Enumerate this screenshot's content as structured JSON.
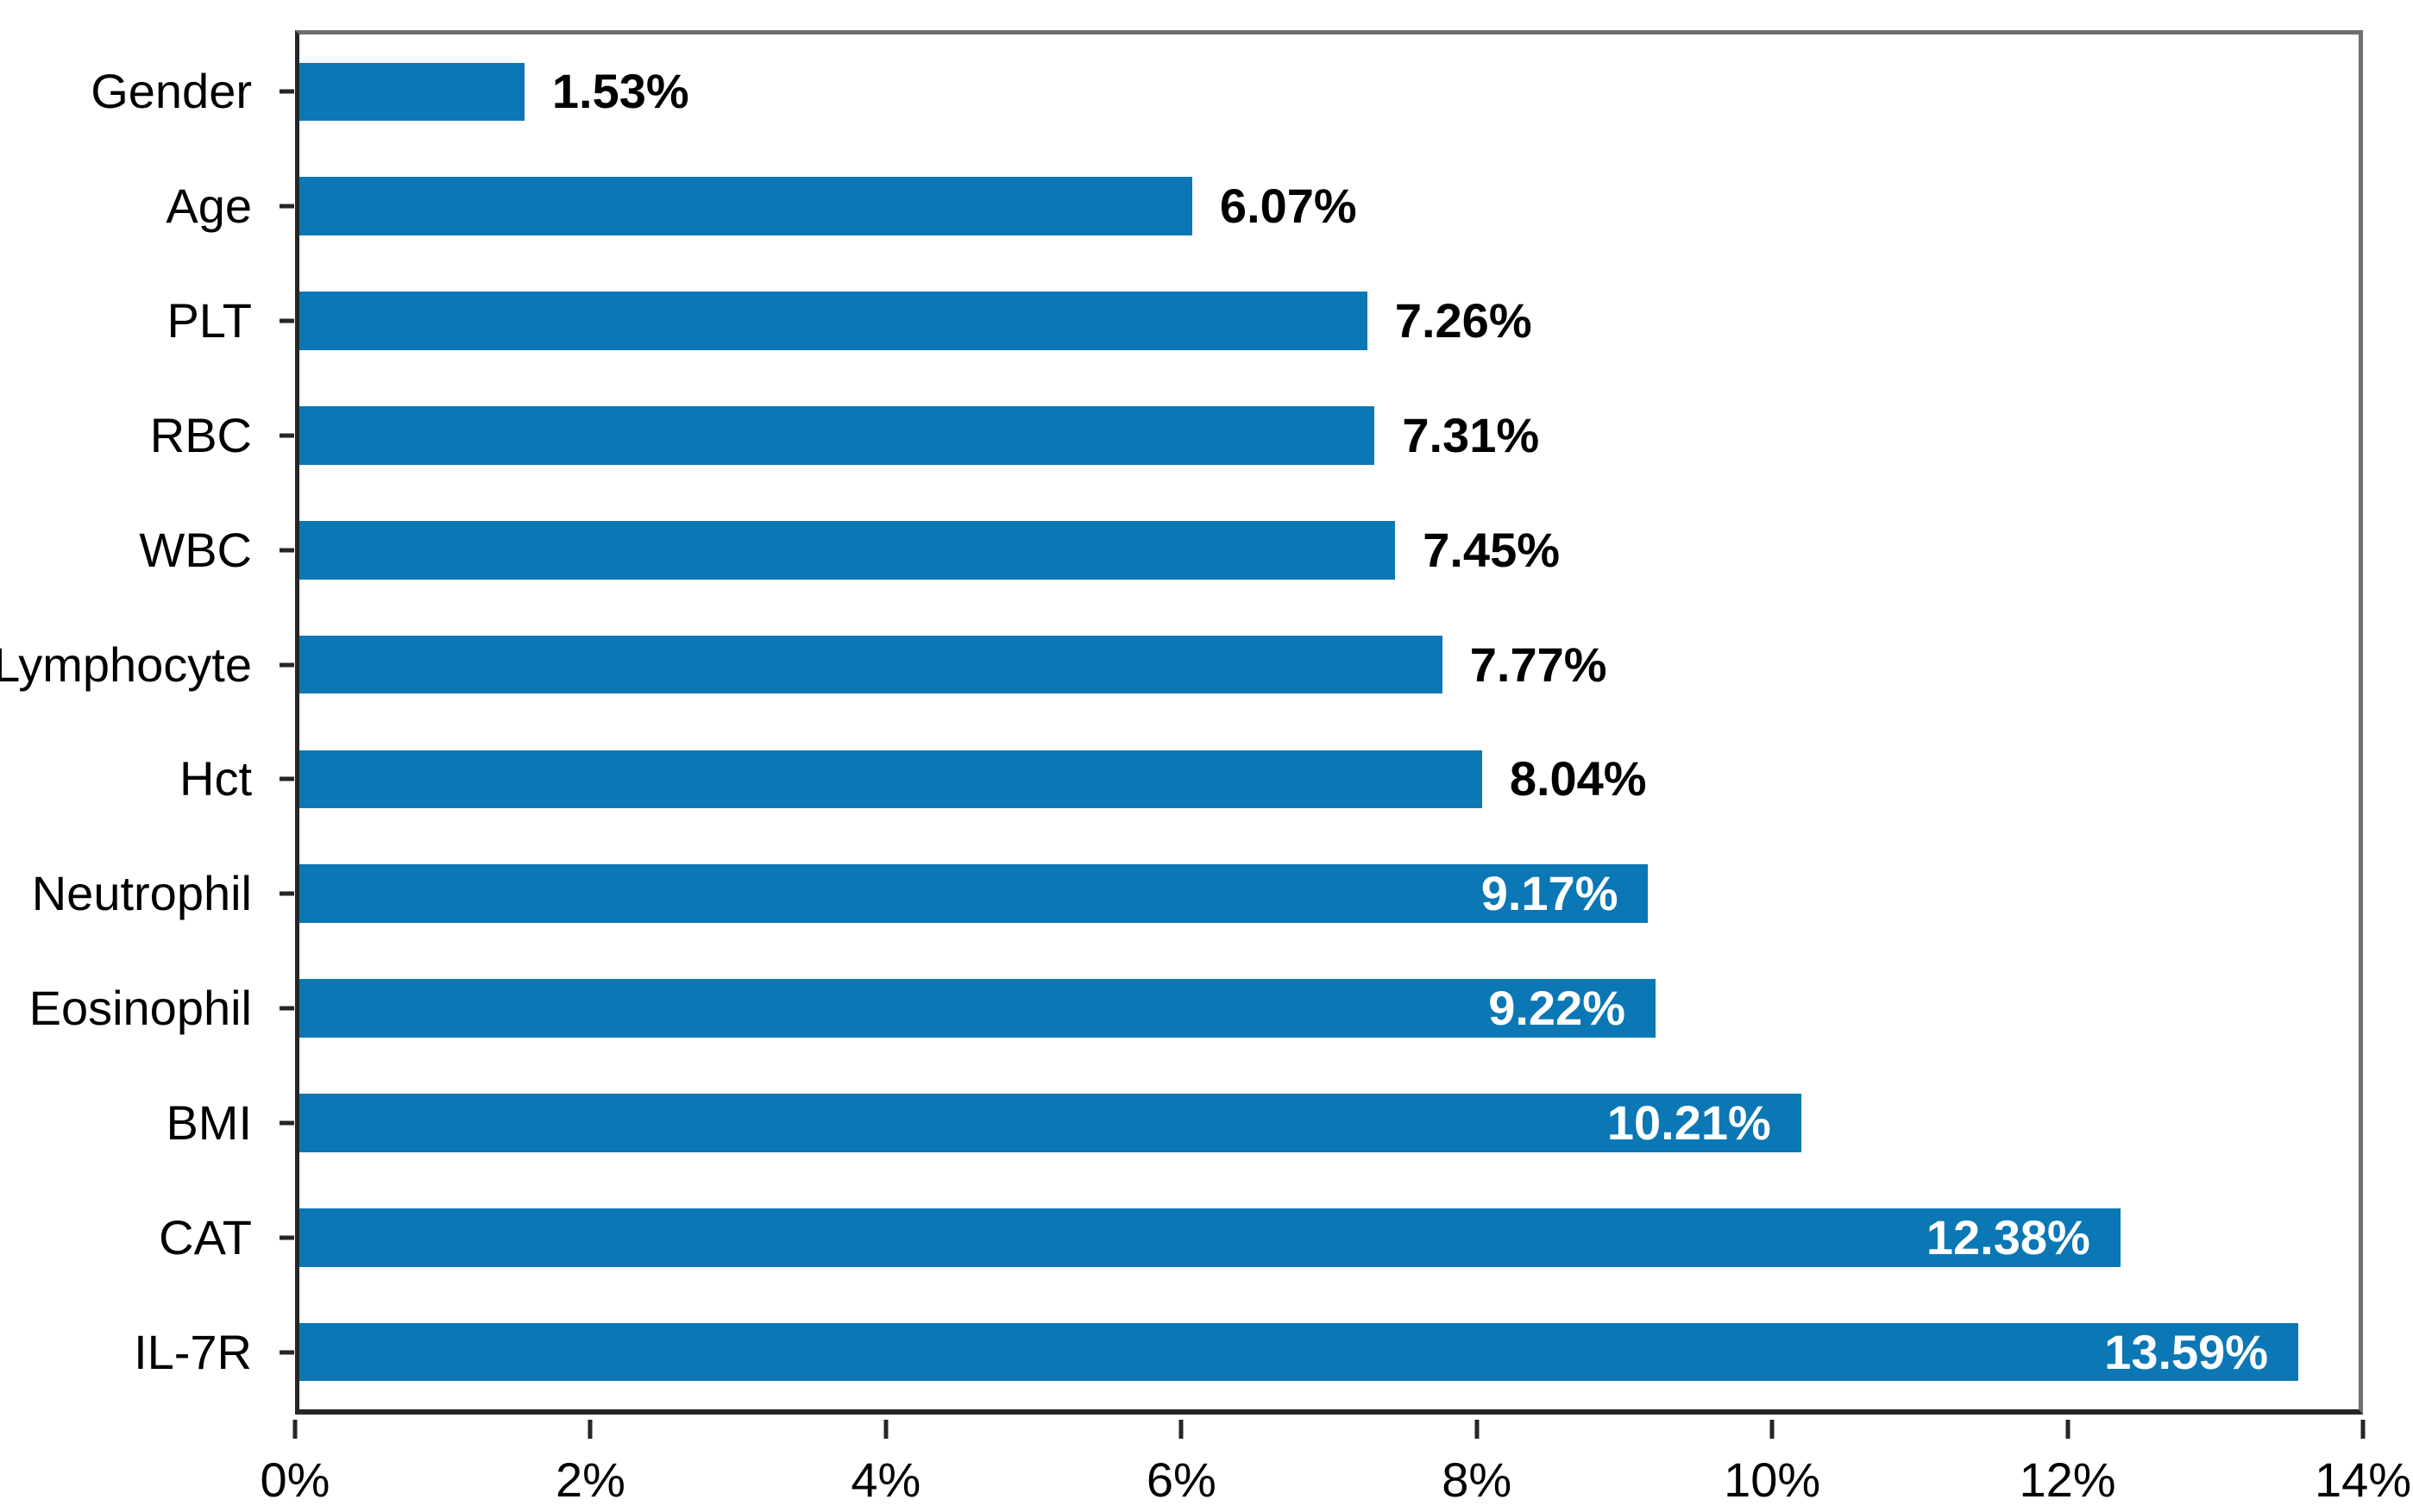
{
  "chart_data": {
    "type": "bar",
    "orientation": "horizontal",
    "title": "",
    "xlabel": "",
    "ylabel": "",
    "categories": [
      "Gender",
      "Age",
      "PLT",
      "RBC",
      "WBC",
      "Lymphocyte",
      "Hct",
      "Neutrophil",
      "Eosinophil",
      "BMI",
      "CAT",
      "IL-7R"
    ],
    "values": [
      1.53,
      6.07,
      7.26,
      7.31,
      7.45,
      7.77,
      8.04,
      9.17,
      9.22,
      10.21,
      12.38,
      13.59
    ],
    "value_labels": [
      "1.53%",
      "6.07%",
      "7.26%",
      "7.31%",
      "7.45%",
      "7.77%",
      "8.04%",
      "9.17%",
      "9.22%",
      "10.21%",
      "12.38%",
      "13.59%"
    ],
    "x_ticks": [
      "0%",
      "2%",
      "4%",
      "6%",
      "8%",
      "10%",
      "12%",
      "14%"
    ],
    "x_tick_values": [
      0,
      2,
      4,
      6,
      8,
      10,
      12,
      14
    ],
    "xlim": [
      0,
      14
    ],
    "grid": "off",
    "legend": "none",
    "colors": {
      "bar_fill": "#0b77b5",
      "label_outside": "#000000",
      "label_inside": "#ffffff",
      "axis_dark": "#262626",
      "border_gray": "#6e6e6e",
      "background": "#ffffff"
    }
  }
}
